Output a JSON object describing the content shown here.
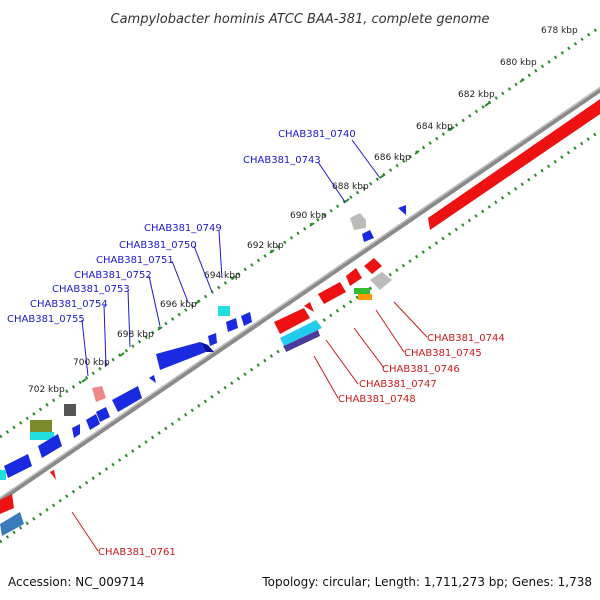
{
  "title": "Campylobacter hominis ATCC BAA-381, complete genome",
  "footer": {
    "accession": "Accession: NC_009714",
    "topology": "Topology: circular; Length: 1,711,273 bp; Genes: 1,738"
  },
  "ticks": [
    "678 kbp",
    "680 kbp",
    "682 kbp",
    "684 kbp",
    "686 kbp",
    "688 kbp",
    "690 kbp",
    "692 kbp",
    "694 kbp",
    "696 kbp",
    "698 kbp",
    "700 kbp",
    "702 kbp"
  ],
  "labels_forward": [
    "CHAB381_0740",
    "CHAB381_0743",
    "CHAB381_0749",
    "CHAB381_0750",
    "CHAB381_0751",
    "CHAB381_0752",
    "CHAB381_0753",
    "CHAB381_0754",
    "CHAB381_0755"
  ],
  "labels_reverse": [
    "CHAB381_0744",
    "CHAB381_0745",
    "CHAB381_0746",
    "CHAB381_0747",
    "CHAB381_0748",
    "CHAB381_0761"
  ],
  "colors": {
    "forward_label": "#1a1acc",
    "reverse_label": "#cc1a1a",
    "backbone": "#888888",
    "tick_marks": "#2a8a2a",
    "gene_blue": "#1a2ae0",
    "gene_red": "#ee1111",
    "gene_cyan": "#22dddd",
    "gene_gray": "#bbbbbb"
  }
}
